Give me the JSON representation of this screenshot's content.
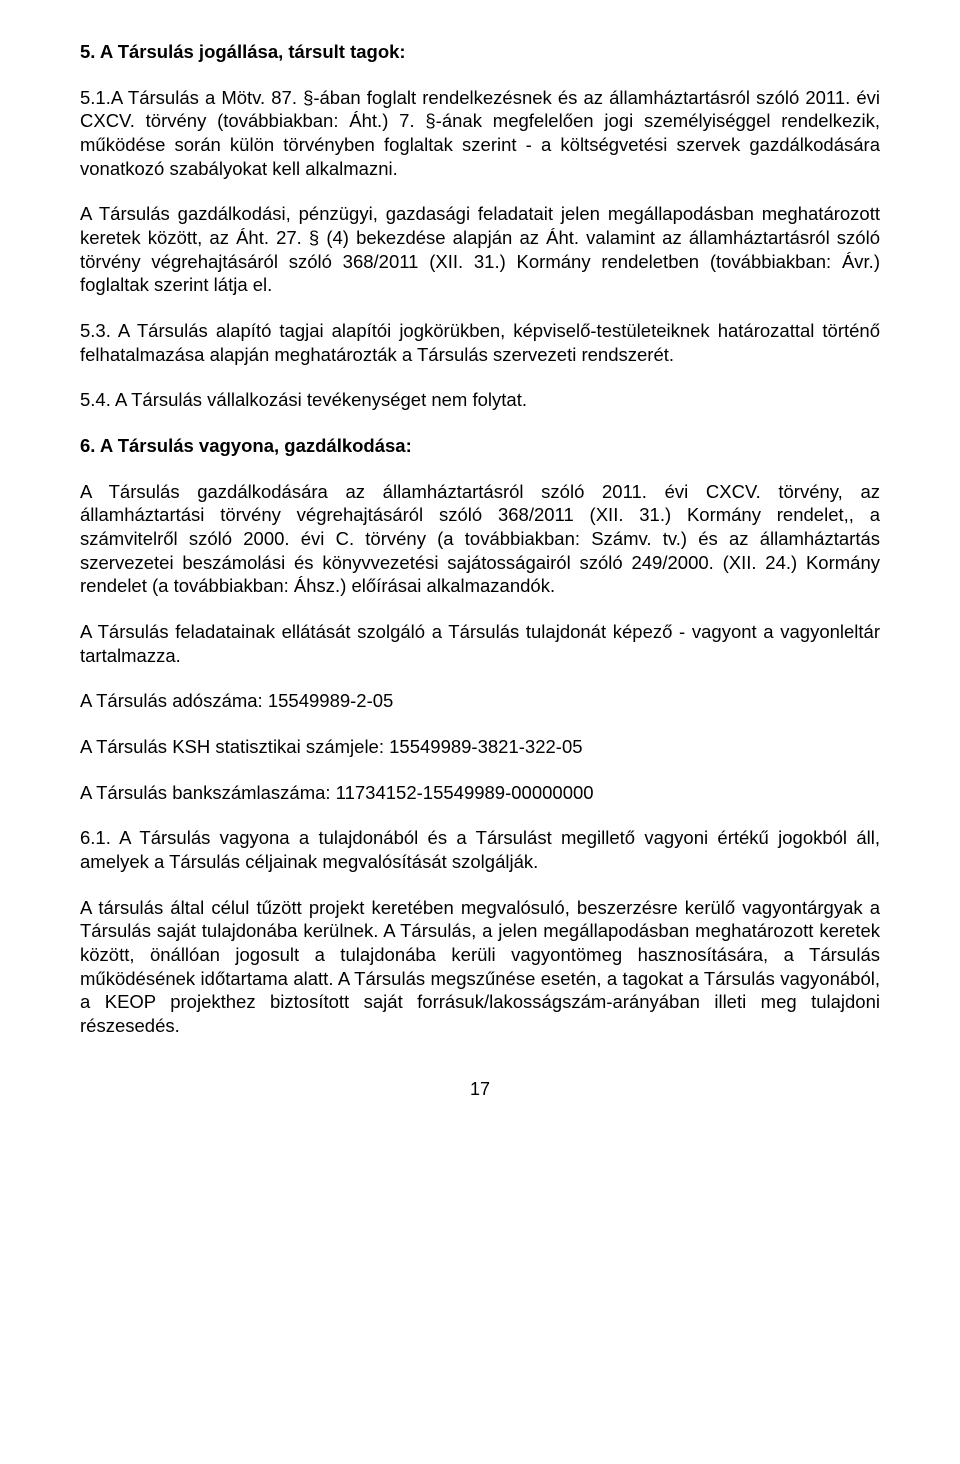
{
  "head1": "5. A Társulás jogállása, társult tagok:",
  "p1": "5.1.A Társulás a Mötv. 87. §-ában foglalt rendelkezésnek és az államháztartásról szóló 2011. évi CXCV. törvény (továbbiakban: Áht.) 7. §-ának megfelelően jogi személyiséggel rendelkezik, működése során külön törvényben foglaltak szerint - a költségvetési szervek gazdálkodására vonatkozó szabályokat kell alkalmazni.",
  "p2": "A Társulás gazdálkodási, pénzügyi, gazdasági feladatait jelen megállapodásban meghatározott keretek között, az Áht. 27. § (4) bekezdése alapján az Áht. valamint az államháztartásról szóló törvény végrehajtásáról szóló 368/2011 (XII. 31.) Kormány rendeletben (továbbiakban: Ávr.) foglaltak szerint látja el.",
  "p3": "5.3. A Társulás alapító tagjai alapítói jogkörükben, képviselő-testületeiknek határozattal történő felhatalmazása alapján meghatározták a Társulás szervezeti rendszerét.",
  "p4": "5.4. A Társulás vállalkozási tevékenységet nem folytat.",
  "head2": "6. A Társulás vagyona, gazdálkodása:",
  "p5": "A Társulás gazdálkodására az államháztartásról szóló 2011. évi CXCV. törvény, az államháztartási törvény végrehajtásáról szóló 368/2011 (XII. 31.) Kormány rendelet,, a számvitelről szóló 2000. évi C. törvény (a továbbiakban: Számv. tv.) és az államháztartás szervezetei beszámolási és könyvvezetési sajátosságairól szóló 249/2000. (XII. 24.) Kormány rendelet (a továbbiakban: Áhsz.) előírásai alkalmazandók.",
  "p6": "A Társulás feladatainak ellátását szolgáló a Társulás tulajdonát képező - vagyont a vagyonleltár tartalmazza.",
  "p7": "A Társulás adószáma: 15549989-2-05",
  "p8": "A Társulás KSH statisztikai számjele: 15549989-3821-322-05",
  "p9": "A Társulás bankszámlaszáma: 11734152-15549989-00000000",
  "p10": "  6.1. A Társulás vagyona a tulajdonából és a Társulást megillető vagyoni értékű jogokból áll, amelyek a Társulás céljainak megvalósítását szolgálják.",
  "p11": "A társulás által célul tűzött projekt keretében megvalósuló, beszerzésre kerülő vagyontárgyak a Társulás saját tulajdonába kerülnek. A Társulás, a jelen megállapodásban meghatározott keretek között, önállóan jogosult a tulajdonába kerüli vagyontömeg hasznosítására, a Társulás működésének időtartama alatt. A Társulás megszűnése esetén, a tagokat a Társulás vagyonából, a KEOP projekthez biztosított saját forrásuk/lakosságszám-arányában illeti meg tulajdoni részesedés.",
  "pageNumber": "17",
  "colors": {
    "text": "#000000",
    "background": "#ffffff"
  },
  "typography": {
    "fontFamily": "Arial",
    "fontSize": 18.5,
    "lineHeight": 1.28
  }
}
